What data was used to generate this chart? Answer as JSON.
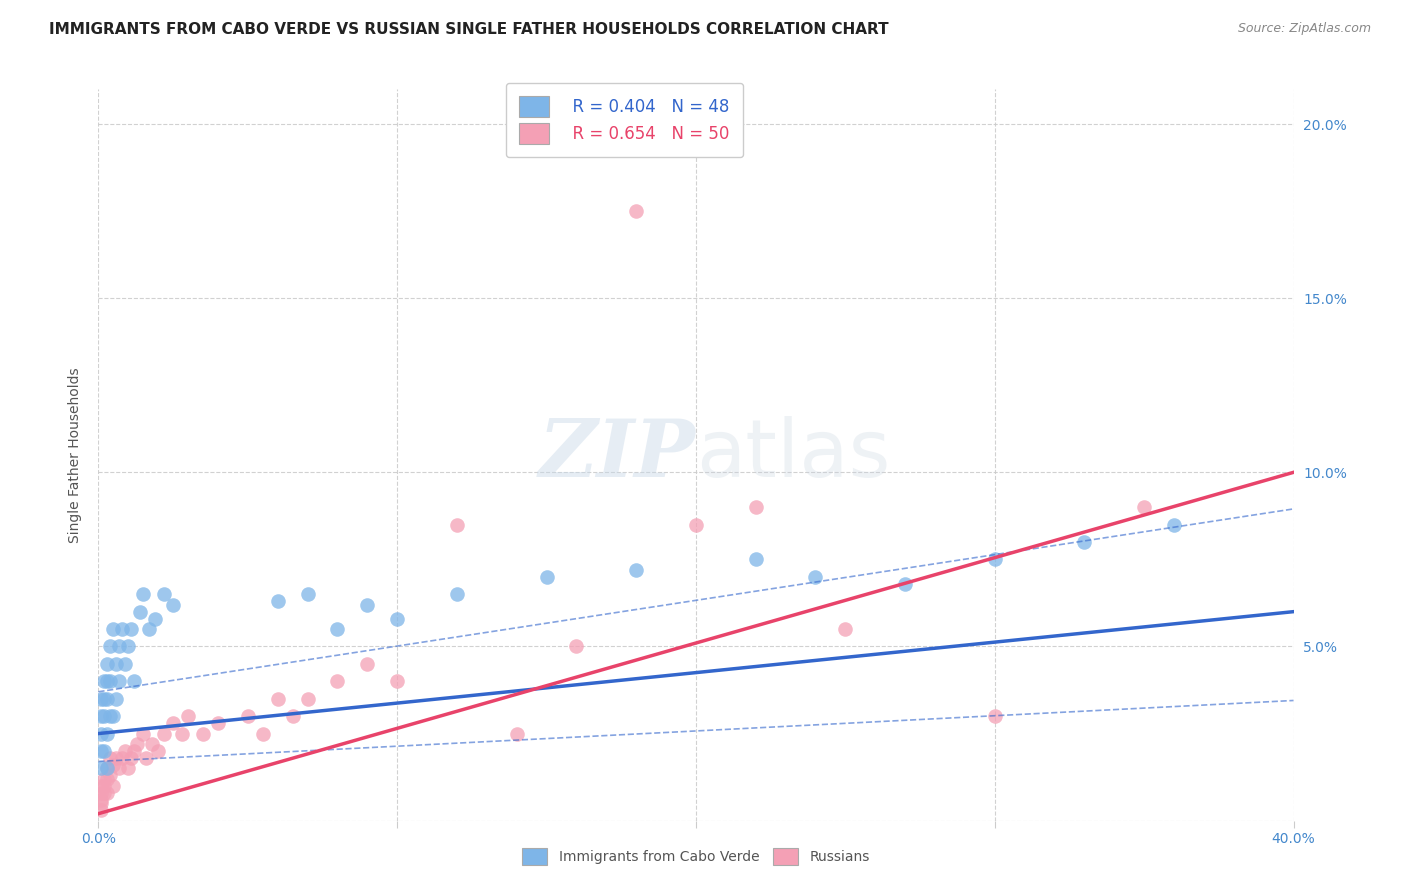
{
  "title": "IMMIGRANTS FROM CABO VERDE VS RUSSIAN SINGLE FATHER HOUSEHOLDS CORRELATION CHART",
  "source": "Source: ZipAtlas.com",
  "ylabel": "Single Father Households",
  "xlim": [
    0.0,
    0.4
  ],
  "ylim": [
    0.0,
    0.21
  ],
  "xticks": [
    0.0,
    0.1,
    0.2,
    0.3,
    0.4
  ],
  "xtick_labels": [
    "0.0%",
    "",
    "",
    "",
    "40.0%"
  ],
  "yticks": [
    0.0,
    0.05,
    0.1,
    0.15,
    0.2
  ],
  "ytick_labels_right": [
    "",
    "5.0%",
    "10.0%",
    "15.0%",
    "20.0%"
  ],
  "cabo_verde_R": 0.404,
  "cabo_verde_N": 48,
  "russians_R": 0.654,
  "russians_N": 50,
  "cabo_verde_color": "#7EB5E8",
  "russians_color": "#F4A0B5",
  "cabo_verde_line_color": "#3366CC",
  "russians_line_color": "#E8436A",
  "background_color": "#FFFFFF",
  "grid_color": "#CCCCCC",
  "title_fontsize": 11,
  "axis_label_fontsize": 10,
  "tick_fontsize": 10,
  "legend_fontsize": 12,
  "cabo_verde_x": [
    0.001,
    0.001,
    0.001,
    0.001,
    0.001,
    0.002,
    0.002,
    0.002,
    0.002,
    0.003,
    0.003,
    0.003,
    0.003,
    0.003,
    0.004,
    0.004,
    0.004,
    0.005,
    0.005,
    0.006,
    0.006,
    0.007,
    0.007,
    0.008,
    0.009,
    0.01,
    0.011,
    0.012,
    0.014,
    0.015,
    0.017,
    0.019,
    0.022,
    0.025,
    0.06,
    0.07,
    0.08,
    0.09,
    0.1,
    0.12,
    0.15,
    0.18,
    0.22,
    0.24,
    0.27,
    0.3,
    0.33,
    0.36
  ],
  "cabo_verde_y": [
    0.035,
    0.03,
    0.025,
    0.02,
    0.015,
    0.04,
    0.035,
    0.03,
    0.02,
    0.045,
    0.04,
    0.035,
    0.025,
    0.015,
    0.05,
    0.04,
    0.03,
    0.055,
    0.03,
    0.045,
    0.035,
    0.05,
    0.04,
    0.055,
    0.045,
    0.05,
    0.055,
    0.04,
    0.06,
    0.065,
    0.055,
    0.058,
    0.065,
    0.062,
    0.063,
    0.065,
    0.055,
    0.062,
    0.058,
    0.065,
    0.07,
    0.072,
    0.075,
    0.07,
    0.068,
    0.075,
    0.08,
    0.085
  ],
  "russians_x": [
    0.001,
    0.001,
    0.001,
    0.001,
    0.001,
    0.002,
    0.002,
    0.002,
    0.003,
    0.003,
    0.003,
    0.004,
    0.004,
    0.005,
    0.005,
    0.006,
    0.007,
    0.008,
    0.009,
    0.01,
    0.011,
    0.012,
    0.013,
    0.015,
    0.016,
    0.018,
    0.02,
    0.022,
    0.025,
    0.028,
    0.03,
    0.035,
    0.04,
    0.05,
    0.055,
    0.06,
    0.065,
    0.07,
    0.08,
    0.09,
    0.1,
    0.12,
    0.14,
    0.16,
    0.18,
    0.2,
    0.22,
    0.25,
    0.3,
    0.35
  ],
  "russians_y": [
    0.01,
    0.008,
    0.006,
    0.005,
    0.003,
    0.012,
    0.01,
    0.008,
    0.015,
    0.012,
    0.008,
    0.018,
    0.013,
    0.016,
    0.01,
    0.018,
    0.015,
    0.018,
    0.02,
    0.015,
    0.018,
    0.02,
    0.022,
    0.025,
    0.018,
    0.022,
    0.02,
    0.025,
    0.028,
    0.025,
    0.03,
    0.025,
    0.028,
    0.03,
    0.025,
    0.035,
    0.03,
    0.035,
    0.04,
    0.045,
    0.04,
    0.085,
    0.025,
    0.05,
    0.175,
    0.085,
    0.09,
    0.055,
    0.03,
    0.09
  ]
}
